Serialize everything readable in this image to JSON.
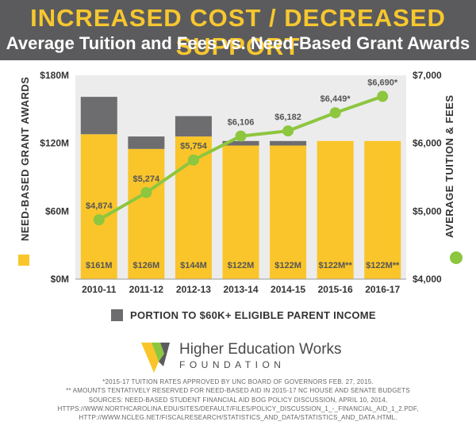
{
  "header": {
    "title": "INCREASED COST / DECREASED SUPPORT",
    "subtitle": "Average Tuition and Fees vs. Need-Based Grant Awards"
  },
  "colors": {
    "header_bg": "#5b5b5d",
    "title": "#f7c72f",
    "bar_grant": "#f9c52a",
    "bar_portion": "#6d6d70",
    "line_tuition": "#8dc63f",
    "plot_bg": "#ececec"
  },
  "chart_data": {
    "type": "bar",
    "categories": [
      "2010-11",
      "2011-12",
      "2012-13",
      "2013-14",
      "2014-15",
      "2015-16",
      "2016-17"
    ],
    "y_left": {
      "label": "NEED-BASED GRANT AWARDS",
      "range": [
        0,
        180
      ],
      "ticks": [
        0,
        60,
        120,
        180
      ],
      "tick_labels": [
        "$0M",
        "$60M",
        "$120M",
        "$180M"
      ]
    },
    "y_right": {
      "label": "AVERAGE TUITION & FEES",
      "range": [
        4000,
        7000
      ],
      "ticks": [
        4000,
        5000,
        6000,
        7000
      ],
      "tick_labels": [
        "$4,000",
        "$5,000",
        "$6,000",
        "$7,000"
      ]
    },
    "series": [
      {
        "name": "NEED-BASED GRANT AWARDS",
        "kind": "bar",
        "axis": "left",
        "values": [
          161,
          126,
          144,
          122,
          122,
          122,
          122
        ],
        "portion_60k": [
          33,
          11,
          18,
          4,
          4,
          0,
          0
        ],
        "labels": [
          "$161M",
          "$126M",
          "$144M",
          "$122M",
          "$122M",
          "$122M**",
          "$122M**"
        ]
      },
      {
        "name": "AVERAGE TUITION & FEES",
        "kind": "line",
        "axis": "right",
        "values": [
          4874,
          5274,
          5754,
          6106,
          6182,
          6449,
          6690
        ],
        "labels": [
          "$4,874",
          "$5,274",
          "$5,754",
          "$6,106",
          "$6,182",
          "$6,449*",
          "$6,690*"
        ]
      }
    ],
    "legend": {
      "portion_label": "PORTION TO $60K+ ELIGIBLE PARENT INCOME"
    },
    "grid": false
  },
  "logo": {
    "name": "Higher Education Works",
    "sub": "FOUNDATION"
  },
  "footnotes": [
    "*2015-17 TUITION RATES APPROVED BY UNC BOARD OF GOVERNORS FEB. 27, 2015.",
    "** AMOUNTS TENTATIVELY RESERVED FOR NEED-BASED AID IN 2015-17 NC HOUSE AND SENATE BUDGETS",
    "SOURCES: NEED-BASED STUDENT FINANCIAL AID BOG POLICY DISCUSSION, APRIL 10, 2014,",
    "HTTPS://WWW.NORTHCAROLINA.EDU/SITES/DEFAULT/FILES/POLICY_DISCUSSION_1_-_FINANCIAL_AID_1_2.PDF,",
    "HTTP://WWW.NCLEG.NET/FISCALRESEARCH/STATISTICS_AND_DATA/STATISTICS_AND_DATA.HTML."
  ]
}
